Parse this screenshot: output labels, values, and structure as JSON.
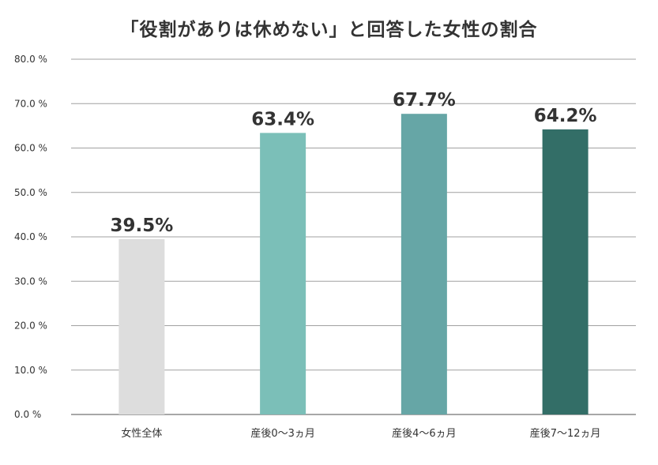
{
  "chart_data": {
    "type": "bar",
    "title": "「役割がありは休めない」と回答した女性の割合",
    "categories": [
      "女性全体",
      "産後0〜3ヵ月",
      "産後4〜6ヵ月",
      "産後7〜12ヵ月"
    ],
    "values": [
      39.5,
      63.4,
      67.7,
      64.2
    ],
    "value_labels": [
      "39.5%",
      "63.4%",
      "67.7%",
      "64.2%"
    ],
    "colors": [
      "#dddddd",
      "#7bbfb8",
      "#66a6a6",
      "#336e67"
    ],
    "ylim": [
      0,
      80
    ],
    "yticks": [
      "0.0 %",
      "10.0 %",
      "20.0 %",
      "30.0 %",
      "40.0 %",
      "50.0 %",
      "60.0 %",
      "70.0 %",
      "80.0 %"
    ],
    "grid": true,
    "legend": "none"
  }
}
